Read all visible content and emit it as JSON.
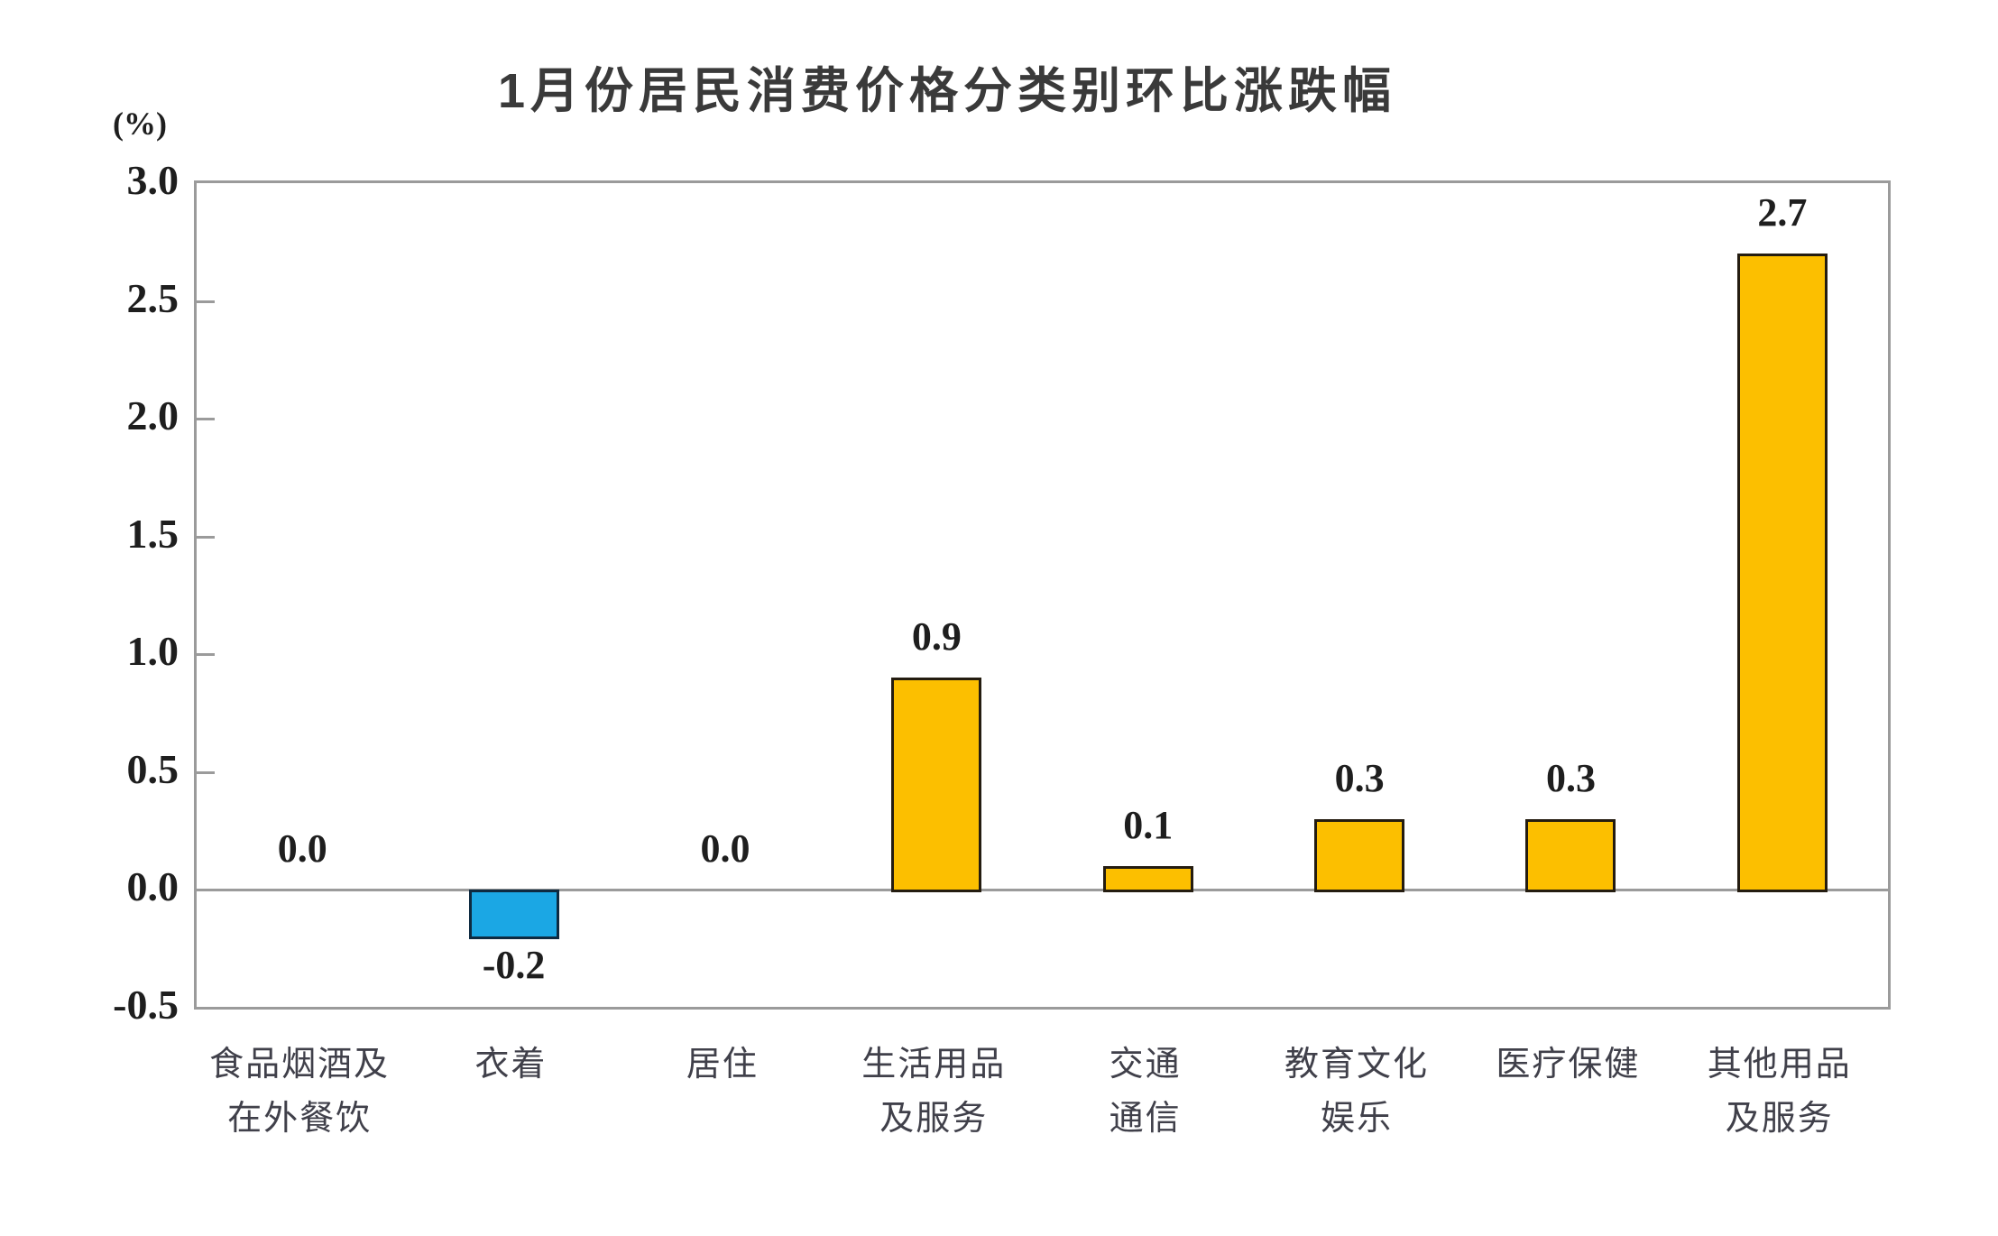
{
  "chart": {
    "title": "1月份居民消费价格分类别环比涨跌幅",
    "unit_label": "(%)"
  },
  "chart_data": {
    "type": "bar",
    "title": "1月份居民消费价格分类别环比涨跌幅",
    "xlabel": "",
    "ylabel": "(%)",
    "ylim": [
      -0.5,
      3.0
    ],
    "ytick_interval": 0.5,
    "yticks": [
      "3.0",
      "2.5",
      "2.0",
      "1.5",
      "1.0",
      "0.5",
      "0.0",
      "-0.5"
    ],
    "grid": false,
    "legend_position": "none",
    "categories": [
      "食品烟酒及在外餐饮",
      "衣着",
      "居住",
      "生活用品及服务",
      "交通通信",
      "教育文化娱乐",
      "医疗保健",
      "其他用品及服务"
    ],
    "category_label_lines": [
      [
        "食品烟酒及",
        "在外餐饮"
      ],
      [
        "衣着"
      ],
      [
        "居住"
      ],
      [
        "生活用品",
        "及服务"
      ],
      [
        "交通",
        "通信"
      ],
      [
        "教育文化",
        "娱乐"
      ],
      [
        "医疗保健"
      ],
      [
        "其他用品",
        "及服务"
      ]
    ],
    "values": [
      0.0,
      -0.2,
      0.0,
      0.9,
      0.1,
      0.3,
      0.3,
      2.7
    ],
    "value_labels": [
      "0.0",
      "-0.2",
      "0.0",
      "0.9",
      "0.1",
      "0.3",
      "0.3",
      "2.7"
    ],
    "colors": {
      "positive_bar": "#fcbf00",
      "positive_bar_border": "#241c10",
      "negative_bar": "#1ba7e4",
      "negative_bar_border": "#0e2a40",
      "axis": "#9b9b9b",
      "number_text": "#1e1e1e",
      "category_text": "#40404a",
      "title_text": "#3a3a3a"
    }
  }
}
